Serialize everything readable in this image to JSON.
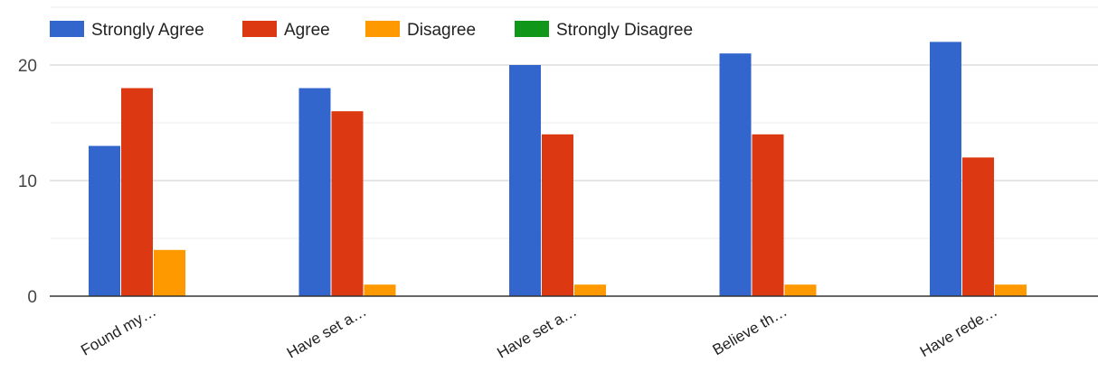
{
  "chart_data": {
    "type": "bar",
    "categories": [
      "Found my…",
      "Have set a…",
      "Have set a…",
      "Believe th…",
      "Have rede…"
    ],
    "series": [
      {
        "name": "Strongly Agree",
        "color": "#3366cc",
        "values": [
          13,
          18,
          20,
          21,
          22
        ]
      },
      {
        "name": "Agree",
        "color": "#dc3912",
        "values": [
          18,
          16,
          14,
          14,
          12
        ]
      },
      {
        "name": "Disagree",
        "color": "#ff9900",
        "values": [
          4,
          1,
          1,
          1,
          1
        ]
      },
      {
        "name": "Strongly Disagree",
        "color": "#109618",
        "values": [
          0,
          0,
          0,
          0,
          0
        ]
      }
    ],
    "yticks": [
      0,
      10,
      20
    ],
    "ylim": [
      0,
      25
    ],
    "grid": true,
    "legend_position": "top-left"
  }
}
